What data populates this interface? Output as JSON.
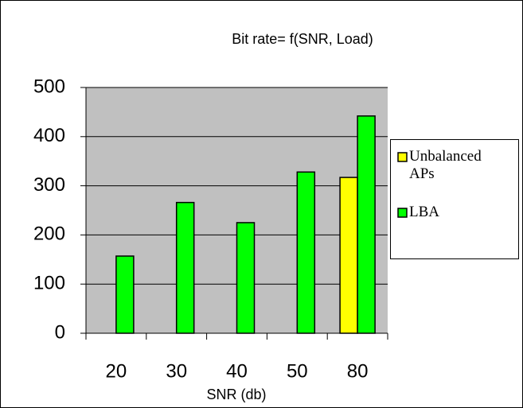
{
  "chart_data": {
    "type": "bar",
    "title": "Bit rate= f(SNR, Load)",
    "x_label": "SNR (db)",
    "categories": [
      "20",
      "30",
      "40",
      "50",
      "80"
    ],
    "series": [
      {
        "name": "Unbalanced APs",
        "color": "#ffff00",
        "values": [
          null,
          null,
          null,
          null,
          317
        ]
      },
      {
        "name": "LBA",
        "color": "#00ff00",
        "values": [
          157,
          266,
          225,
          328,
          442
        ]
      }
    ],
    "ylim": [
      0,
      500
    ],
    "yticks": [
      0,
      100,
      200,
      300,
      400,
      500
    ],
    "grid": true,
    "legend": "right"
  }
}
